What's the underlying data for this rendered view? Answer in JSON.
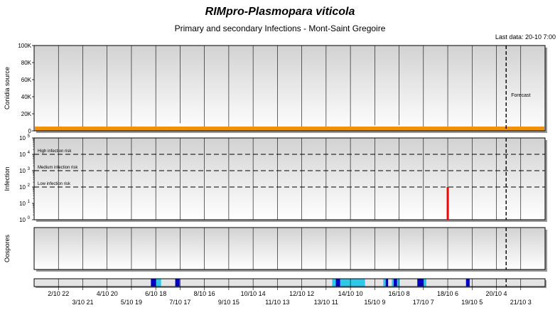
{
  "title": "RIMpro-Plasmopara viticola",
  "subtitle": "Primary and secondary Infections - Mont-Saint Gregoire",
  "last_data": "Last data: 20-10 7:00",
  "colors": {
    "conidia": "#f0900c",
    "infection": "#ff0000",
    "forecast_line": "#000000",
    "timeline_dark": "#0000c0",
    "timeline_light": "#30c8e8"
  },
  "chart_data": [
    {
      "type": "area",
      "name": "conidia",
      "ylabel": "Conidia source",
      "ylim": [
        0,
        100000
      ],
      "yticks": [
        0,
        20000,
        40000,
        60000,
        80000,
        100000
      ],
      "ytick_labels": [
        "0",
        "20K",
        "40K",
        "60K",
        "80K",
        "100K"
      ],
      "forecast_label": "Forecast",
      "forecast_start": "20/10 7:00",
      "series": [
        {
          "values_base": 5000,
          "bumps": [
            {
              "from_day": 5.4,
              "peak_day": 5.8,
              "to_day": 6.2,
              "value": 9000
            },
            {
              "from_day": 13.2,
              "peak_day": 14.0,
              "to_day": 15.6,
              "value": 6500
            }
          ]
        }
      ]
    },
    {
      "type": "bar",
      "name": "infection",
      "ylabel": "Infection",
      "yscale": "log",
      "ylim": [
        1,
        100000
      ],
      "ytick_exponents": [
        0,
        1,
        2,
        3,
        4,
        5
      ],
      "thresholds": [
        {
          "label": "High infection risk",
          "value": 10000
        },
        {
          "label": "Medium infection risk",
          "value": 1000
        },
        {
          "label": "Low infection risk",
          "value": 100
        }
      ],
      "bars": [
        {
          "day": 17.0,
          "value": 100
        }
      ]
    },
    {
      "type": "area",
      "name": "oospores",
      "ylabel": "Oospores",
      "series": []
    },
    {
      "type": "timeline",
      "name": "wetness",
      "segments": [
        {
          "from": 4.8,
          "to": 5.0,
          "level": "dark"
        },
        {
          "from": 5.0,
          "to": 5.22,
          "level": "light"
        },
        {
          "from": 5.8,
          "to": 5.98,
          "level": "dark"
        },
        {
          "from": 12.25,
          "to": 12.4,
          "level": "light"
        },
        {
          "from": 12.4,
          "to": 12.58,
          "level": "dark"
        },
        {
          "from": 12.58,
          "to": 13.6,
          "level": "light"
        },
        {
          "from": 14.35,
          "to": 14.45,
          "level": "light"
        },
        {
          "from": 14.45,
          "to": 14.55,
          "level": "dark"
        },
        {
          "from": 14.7,
          "to": 14.78,
          "level": "light"
        },
        {
          "from": 14.78,
          "to": 14.92,
          "level": "dark"
        },
        {
          "from": 14.92,
          "to": 15.02,
          "level": "light"
        },
        {
          "from": 15.75,
          "to": 16.0,
          "level": "dark"
        },
        {
          "from": 16.0,
          "to": 16.12,
          "level": "light"
        },
        {
          "from": 17.75,
          "to": 17.9,
          "level": "dark"
        }
      ]
    }
  ],
  "x_axis": {
    "days": 21,
    "labels_top": [
      "2/10 22",
      "4/10 20",
      "6/10 18",
      "8/10 16",
      "10/10 14",
      "12/10 12",
      "14/10 10",
      "16/10 8",
      "18/10 6",
      "20/10 4"
    ],
    "labels_bottom": [
      "3/10 21",
      "5/10 19",
      "7/10 17",
      "9/10 15",
      "11/10 13",
      "13/10 11",
      "15/10 9",
      "17/10 7",
      "19/10 5",
      "21/10 3"
    ]
  }
}
